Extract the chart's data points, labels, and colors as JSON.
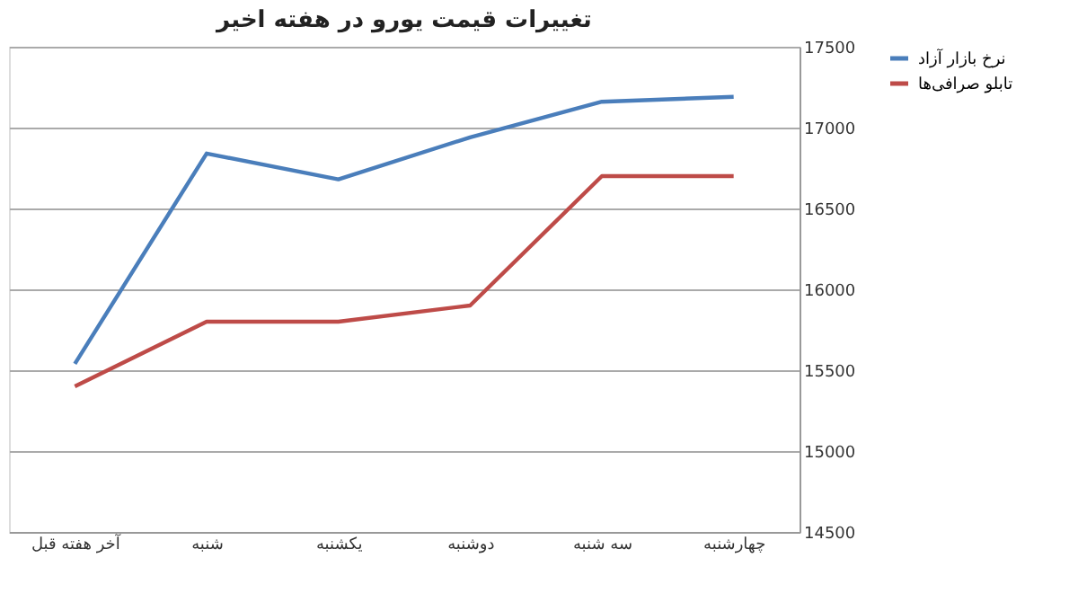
{
  "chart_data": {
    "type": "line",
    "title": "تغییرات قیمت یورو در هفته اخیر",
    "categories": [
      "آخر هفته قبل",
      "شنبه",
      "یکشنبه",
      "دوشنبه",
      "سه شنبه",
      "چهارشنبه"
    ],
    "series": [
      {
        "name": "نرخ بازار آزاد",
        "color": "#4a7ebb",
        "values": [
          15540,
          16840,
          16680,
          16940,
          17160,
          17190
        ]
      },
      {
        "name": "تابلو صرافی‌ها",
        "color": "#be4b48",
        "values": [
          15400,
          15800,
          15800,
          15900,
          16700,
          16700
        ]
      }
    ],
    "ylim": [
      14500,
      17500
    ],
    "yticks": [
      14500,
      15000,
      15500,
      16000,
      16500,
      17000,
      17500
    ],
    "grid": "y",
    "legend": "right",
    "marker": "none",
    "line_style": "solid"
  }
}
